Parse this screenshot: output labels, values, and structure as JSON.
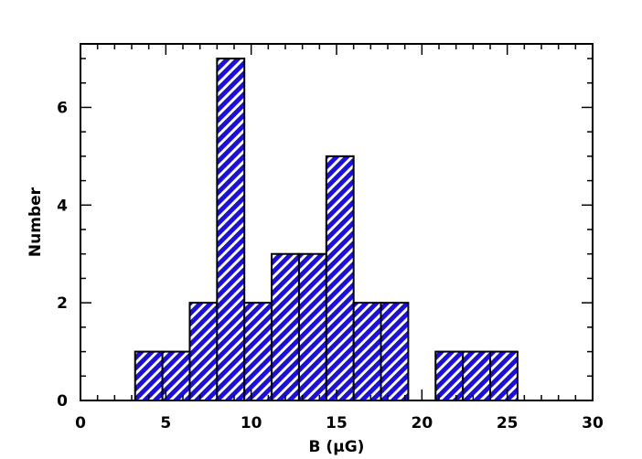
{
  "chart_data": {
    "type": "bar",
    "title": "",
    "xlabel": "B (μG)",
    "ylabel": "Number",
    "xlim": [
      0,
      30
    ],
    "ylim": [
      0,
      7.3
    ],
    "grid": false,
    "bars": [
      {
        "x0": 3.2,
        "x1": 4.8,
        "value": 1
      },
      {
        "x0": 4.8,
        "x1": 6.4,
        "value": 1
      },
      {
        "x0": 6.4,
        "x1": 8.0,
        "value": 2
      },
      {
        "x0": 8.0,
        "x1": 9.6,
        "value": 7
      },
      {
        "x0": 9.6,
        "x1": 11.2,
        "value": 2
      },
      {
        "x0": 11.2,
        "x1": 12.8,
        "value": 3
      },
      {
        "x0": 12.8,
        "x1": 14.4,
        "value": 3
      },
      {
        "x0": 14.4,
        "x1": 16.0,
        "value": 5
      },
      {
        "x0": 16.0,
        "x1": 17.6,
        "value": 2
      },
      {
        "x0": 17.6,
        "x1": 19.2,
        "value": 2
      },
      {
        "x0": 20.8,
        "x1": 22.4,
        "value": 1
      },
      {
        "x0": 22.4,
        "x1": 24.0,
        "value": 1
      },
      {
        "x0": 24.0,
        "x1": 25.6,
        "value": 1
      }
    ],
    "x_ticks": [
      0,
      5,
      10,
      15,
      20,
      25,
      30
    ],
    "x_tick_labels": [
      "0",
      "5",
      "10",
      "15",
      "20",
      "25",
      "30"
    ],
    "y_ticks": [
      0,
      2,
      4,
      6
    ],
    "y_tick_labels": [
      "0",
      "2",
      "4",
      "6"
    ],
    "bar_color": "#1a0fe0",
    "hatch_color": "#ffffff",
    "edge_color": "#000000"
  }
}
